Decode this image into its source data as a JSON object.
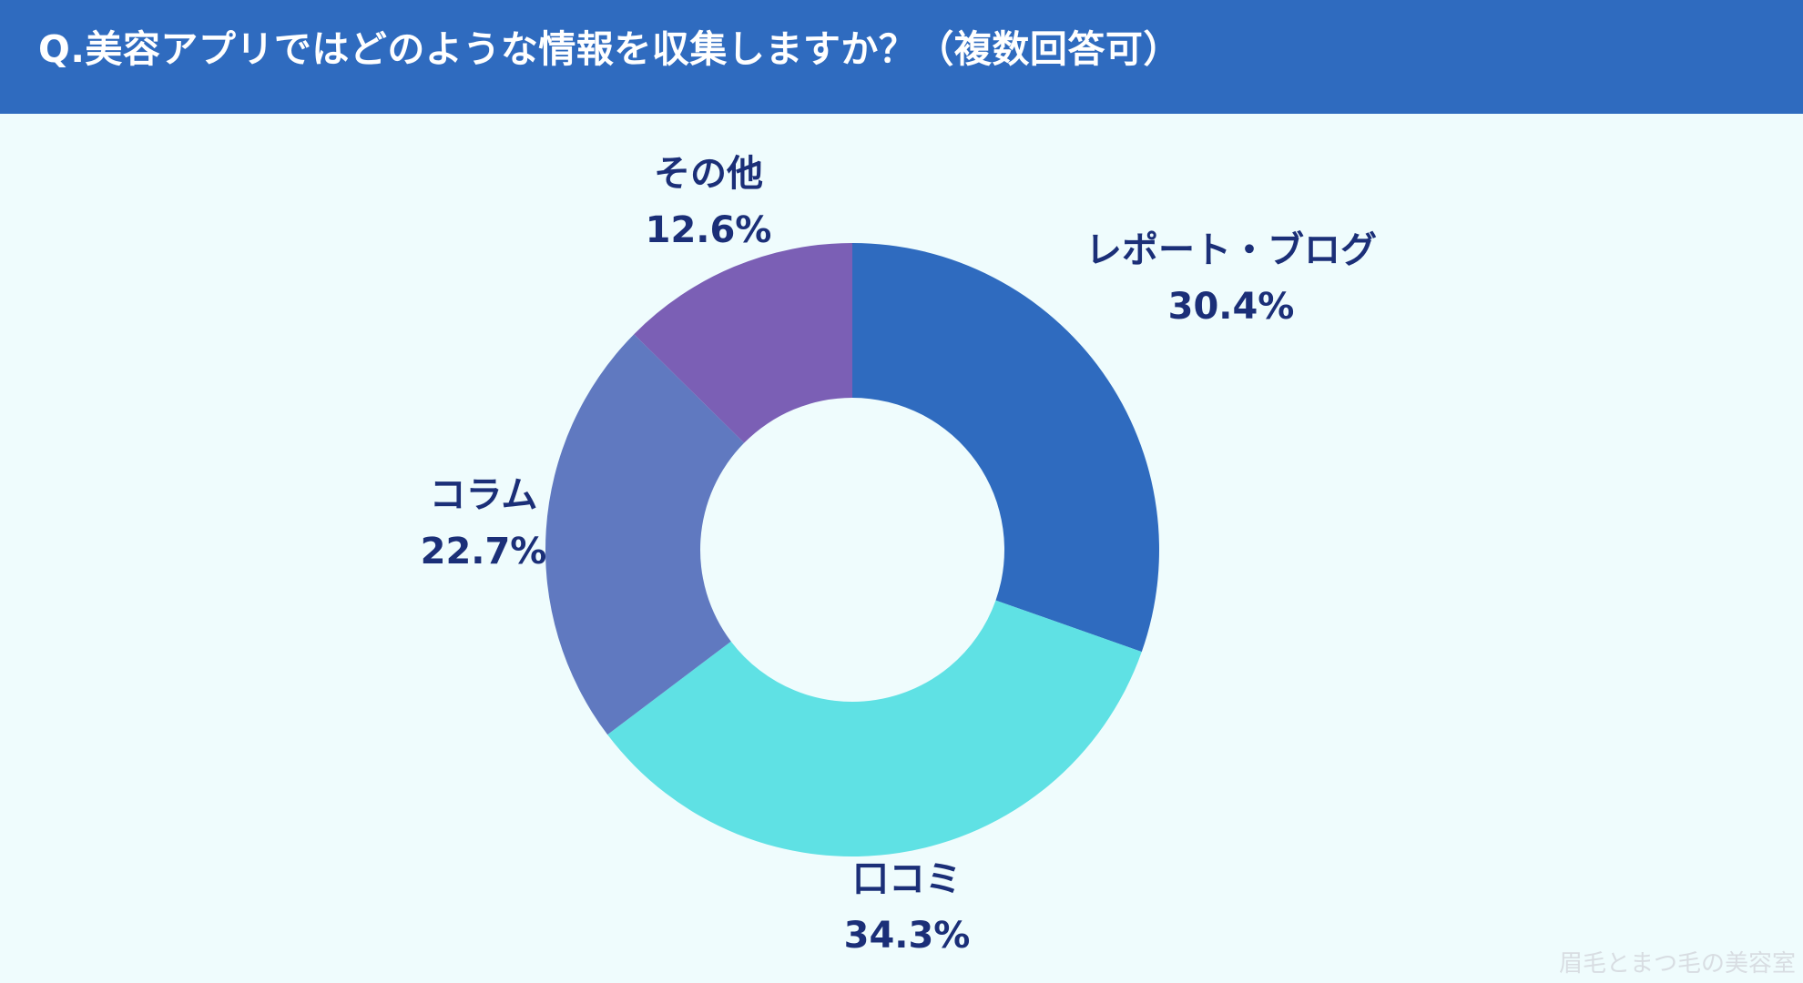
{
  "header": {
    "title": "Q.美容アプリではどのような情報を収集しますか？（複数回答可）"
  },
  "colors": {
    "header_bg": "#2f6bbf",
    "background": "#effcfd",
    "label_text": "#1b2f78"
  },
  "chart_data": {
    "type": "pie",
    "title": "Q.美容アプリではどのような情報を収集しますか？（複数回答可）",
    "categories": [
      "レポート・ブログ",
      "口コミ",
      "コラム",
      "その他"
    ],
    "values": [
      30.4,
      34.3,
      22.7,
      12.6
    ],
    "value_labels": [
      "30.4%",
      "34.3%",
      "22.7%",
      "12.6%"
    ],
    "colors": [
      "#2f6bbf",
      "#5fe1e4",
      "#6079c0",
      "#7b5fb5"
    ],
    "style": "donut",
    "start": "12 o'clock",
    "direction": "clockwise"
  },
  "watermark": "眉毛とまつ毛の美容室"
}
